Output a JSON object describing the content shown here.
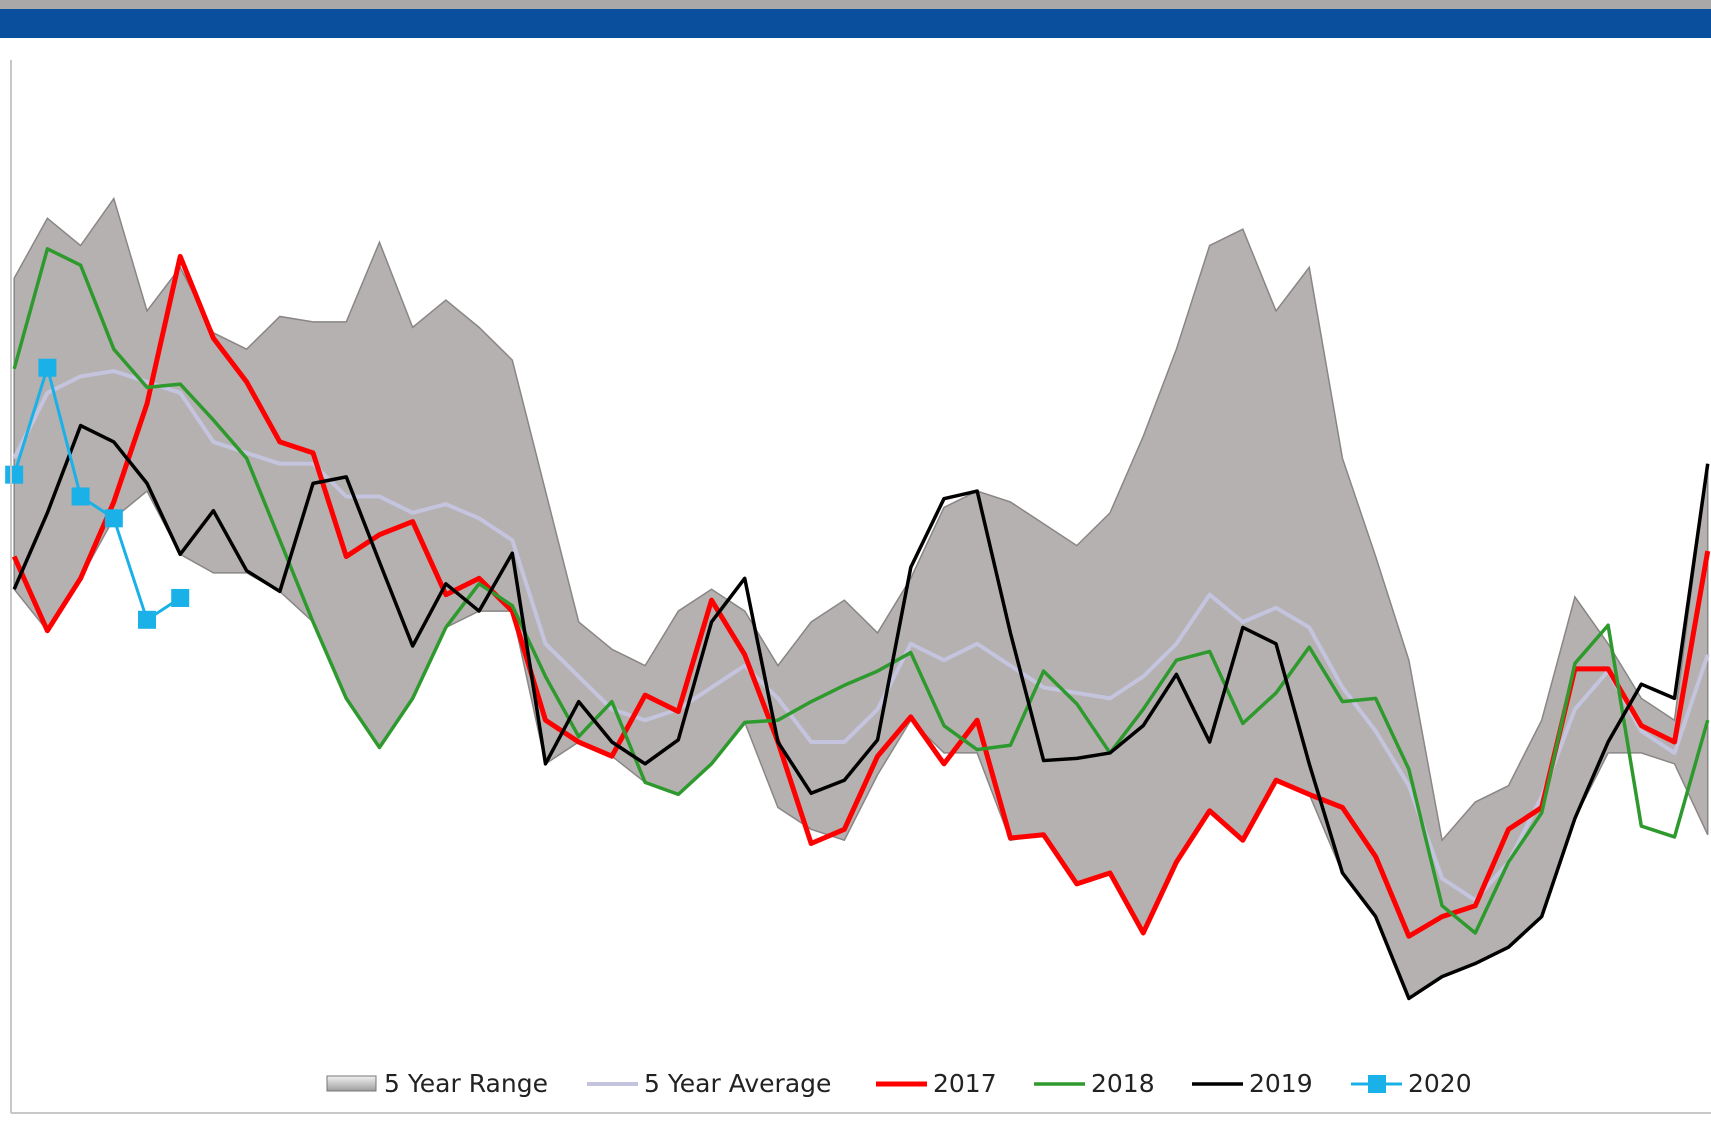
{
  "chart_data": {
    "type": "line",
    "categories": [
      null,
      null,
      null,
      null,
      null,
      null,
      null,
      null,
      null,
      null,
      null,
      null,
      null,
      null,
      null,
      null,
      null,
      null,
      null,
      null,
      null,
      null,
      null,
      null,
      null,
      null,
      null,
      null,
      null,
      null,
      null,
      null,
      null,
      null,
      null,
      null,
      null,
      null,
      null,
      null,
      null,
      null,
      null,
      null,
      null,
      null,
      null,
      null,
      null,
      null,
      null,
      null
    ],
    "ylim": [
      0,
      96
    ],
    "series": [
      {
        "name": "5 Year Range",
        "color": "#b5b1b1",
        "kind": "range",
        "values_low": [
          48,
          44.2,
          49,
          54.5,
          57,
          51.2,
          49.5,
          49.5,
          47.8,
          45,
          38,
          33.5,
          38,
          44.5,
          46,
          46,
          32,
          34,
          32.7,
          30.3,
          29.2,
          32,
          35.8,
          28,
          26,
          25,
          31,
          36,
          33,
          33,
          25,
          25.5,
          21,
          22,
          16.5,
          23,
          27.7,
          25,
          30.5,
          29.2,
          22,
          18,
          10.5,
          12.5,
          13.7,
          15.2,
          18,
          27,
          33,
          33,
          32,
          25.5
        ],
        "values_high": [
          76.5,
          82,
          79.5,
          83.8,
          73.5,
          77.5,
          71.5,
          70,
          73,
          72.5,
          72.5,
          79.8,
          72,
          74.5,
          72,
          69,
          57,
          45,
          42.5,
          41,
          46,
          48,
          46,
          41,
          45,
          47,
          44,
          49,
          55.5,
          57,
          56,
          54,
          52,
          55,
          62,
          70,
          79.5,
          81,
          73.5,
          77.5,
          60,
          51,
          41.5,
          25,
          28.5,
          30,
          36,
          47.3,
          43,
          38,
          36,
          59.5
        ]
      },
      {
        "name": "5 Year Average",
        "color": "#c4c4de",
        "width": 4,
        "values": [
          60,
          66,
          67.5,
          68,
          67,
          66,
          61.5,
          60.5,
          59.5,
          59.5,
          56.5,
          56.5,
          55,
          55.8,
          54.5,
          52.5,
          43,
          40,
          37,
          36,
          37,
          39,
          41,
          38,
          34,
          34,
          37,
          43,
          41.5,
          43,
          41,
          39,
          38.5,
          38,
          40,
          43,
          47.5,
          45,
          46.3,
          44.5,
          39,
          35,
          30,
          21.5,
          19.5,
          23,
          29,
          37,
          40.5,
          35,
          33,
          42
        ]
      },
      {
        "name": "2017",
        "color": "#ff0000",
        "width": 5,
        "values": [
          51,
          44.2,
          49,
          56,
          65,
          78.5,
          71,
          67,
          61.5,
          60.5,
          51,
          53,
          54.2,
          47.5,
          49,
          46,
          36,
          34,
          32.7,
          38.3,
          36.8,
          47,
          42,
          34,
          24.7,
          26,
          32.7,
          36.3,
          32,
          36,
          25.2,
          25.5,
          21,
          22,
          16.5,
          23,
          27.7,
          25,
          30.5,
          29.2,
          28,
          23.5,
          16.2,
          18,
          19,
          26,
          28,
          40.7,
          40.7,
          35.5,
          34,
          51.5
        ]
      },
      {
        "name": "2018",
        "color": "#2e9a2e",
        "width": 3.5,
        "values": [
          68.2,
          79.2,
          77.7,
          70,
          66.5,
          66.8,
          63.5,
          60,
          52.5,
          45,
          38,
          33.5,
          38,
          44.5,
          48.5,
          46.5,
          40,
          34.5,
          37.7,
          30.3,
          29.2,
          32,
          35.8,
          36,
          37.7,
          39.2,
          40.5,
          42.2,
          35.5,
          33.3,
          33.7,
          40.5,
          37.5,
          33,
          37,
          41.5,
          42.3,
          35.7,
          38.5,
          42.7,
          37.7,
          38,
          31.5,
          19,
          16.5,
          23,
          27.5,
          41.2,
          44.7,
          26.3,
          25.3,
          36
        ]
      },
      {
        "name": "2019",
        "color": "#000000",
        "width": 3.5,
        "values": [
          48,
          55,
          63,
          61.5,
          57.7,
          51.2,
          55.2,
          49.7,
          47.8,
          57.7,
          58.3,
          50.5,
          42.8,
          48.5,
          46,
          51.3,
          32,
          37.7,
          34,
          32,
          34.2,
          45,
          49,
          34,
          29.3,
          30.5,
          34.2,
          50,
          56.3,
          57,
          44,
          32.3,
          32.5,
          33,
          35.5,
          40.2,
          34,
          44.5,
          43,
          32,
          22,
          18,
          10.5,
          12.5,
          13.7,
          15.2,
          18,
          27,
          34,
          39.3,
          38,
          59.5
        ]
      },
      {
        "name": "2020",
        "color": "#1ab0e8",
        "width": 3,
        "marker": "square",
        "values": [
          58.5,
          68.3,
          56.5,
          54.5,
          45.2,
          47.2,
          null,
          null,
          null,
          null,
          null,
          null,
          null,
          null,
          null,
          null,
          null,
          null,
          null,
          null,
          null,
          null,
          null,
          null,
          null,
          null,
          null,
          null,
          null,
          null,
          null,
          null,
          null,
          null,
          null,
          null,
          null,
          null,
          null,
          null,
          null,
          null,
          null,
          null,
          null,
          null,
          null,
          null,
          null,
          null,
          null,
          null
        ]
      }
    ]
  }
}
